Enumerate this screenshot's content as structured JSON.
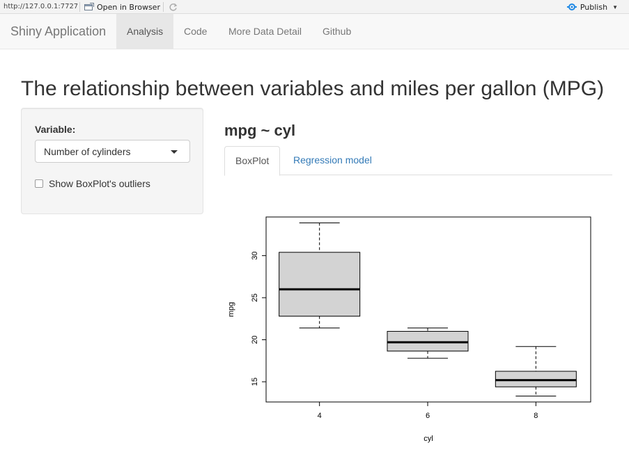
{
  "topbar": {
    "url": "http://127.0.0.1:7727",
    "open_in_browser": "Open in Browser",
    "publish": "Publish"
  },
  "navbar": {
    "brand": "Shiny Application",
    "items": [
      {
        "label": "Analysis",
        "active": true
      },
      {
        "label": "Code",
        "active": false
      },
      {
        "label": "More Data Detail",
        "active": false
      },
      {
        "label": "Github",
        "active": false
      }
    ]
  },
  "page": {
    "title": "The relationship between variables and miles per gallon (MPG)"
  },
  "sidebar": {
    "variable_label": "Variable:",
    "variable_selected": "Number of cylinders",
    "outliers_label": "Show BoxPlot's outliers",
    "outliers_checked": false
  },
  "main": {
    "formula": "mpg ~ cyl",
    "tabs": [
      {
        "label": "BoxPlot",
        "active": true
      },
      {
        "label": "Regression model",
        "active": false
      }
    ]
  },
  "colors": {
    "box_fill": "#d3d3d3",
    "link": "#337ab7",
    "publish_icon": "#1e88e5"
  },
  "chart_data": {
    "type": "boxplot",
    "xlabel": "cyl",
    "ylabel": "mpg",
    "ylim": [
      12.6,
      34.6
    ],
    "yticks": [
      15,
      20,
      25,
      30
    ],
    "categories": [
      "4",
      "6",
      "8"
    ],
    "boxes": [
      {
        "category": "4",
        "min": 21.4,
        "q1": 22.8,
        "median": 26.0,
        "q3": 30.4,
        "max": 33.9
      },
      {
        "category": "6",
        "min": 17.8,
        "q1": 18.65,
        "median": 19.7,
        "q3": 21.0,
        "max": 21.4
      },
      {
        "category": "8",
        "min": 13.3,
        "q1": 14.4,
        "median": 15.2,
        "q3": 16.25,
        "max": 19.2
      }
    ],
    "grid": false,
    "legend": "none"
  }
}
